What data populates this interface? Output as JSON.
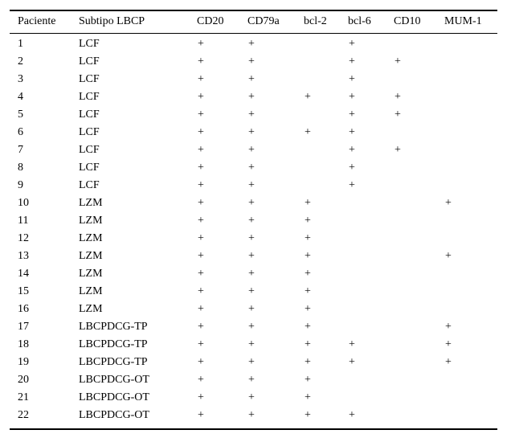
{
  "table": {
    "header": [
      "Paciente",
      "Subtipo LBCP",
      "CD20",
      "CD79a",
      "bcl-2",
      "bcl-6",
      "CD10",
      "MUM-1"
    ],
    "rows": [
      [
        "1",
        "LCF",
        "+",
        "+",
        null,
        "+",
        null,
        null
      ],
      [
        "2",
        "LCF",
        "+",
        "+",
        null,
        "+",
        "+",
        null
      ],
      [
        "3",
        "LCF",
        "+",
        "+",
        null,
        "+",
        null,
        null
      ],
      [
        "4",
        "LCF",
        "+",
        "+",
        "+",
        "+",
        "+",
        null
      ],
      [
        "5",
        "LCF",
        "+",
        "+",
        null,
        "+",
        "+",
        null
      ],
      [
        "6",
        "LCF",
        "+",
        "+",
        "+",
        "+",
        null,
        null
      ],
      [
        "7",
        "LCF",
        "+",
        "+",
        null,
        "+",
        "+",
        null
      ],
      [
        "8",
        "LCF",
        "+",
        "+",
        null,
        "+",
        null,
        null
      ],
      [
        "9",
        "LCF",
        "+",
        "+",
        null,
        "+",
        null,
        null
      ],
      [
        "10",
        "LZM",
        "+",
        "+",
        "+",
        null,
        null,
        "+"
      ],
      [
        "11",
        "LZM",
        "+",
        "+",
        "+",
        null,
        null,
        null
      ],
      [
        "12",
        "LZM",
        "+",
        "+",
        "+",
        null,
        null,
        null
      ],
      [
        "13",
        "LZM",
        "+",
        "+",
        "+",
        null,
        null,
        "+"
      ],
      [
        "14",
        "LZM",
        "+",
        "+",
        "+",
        null,
        null,
        null
      ],
      [
        "15",
        "LZM",
        "+",
        "+",
        "+",
        null,
        null,
        null
      ],
      [
        "16",
        "LZM",
        "+",
        "+",
        "+",
        null,
        null,
        null
      ],
      [
        "17",
        "LBCPDCG-TP",
        "+",
        "+",
        "+",
        null,
        null,
        "+"
      ],
      [
        "18",
        "LBCPDCG-TP",
        "+",
        "+",
        "+",
        "+",
        null,
        "+"
      ],
      [
        "19",
        "LBCPDCG-TP",
        "+",
        "+",
        "+",
        "+",
        null,
        "+"
      ],
      [
        "20",
        "LBCPDCG-OT",
        "+",
        "+",
        "+",
        null,
        null,
        null
      ],
      [
        "21",
        "LBCPDCG-OT",
        "+",
        "+",
        "+",
        null,
        null,
        null
      ],
      [
        "22",
        "LBCPDCG-OT",
        "+",
        "+",
        "+",
        "+",
        null,
        null
      ]
    ]
  }
}
